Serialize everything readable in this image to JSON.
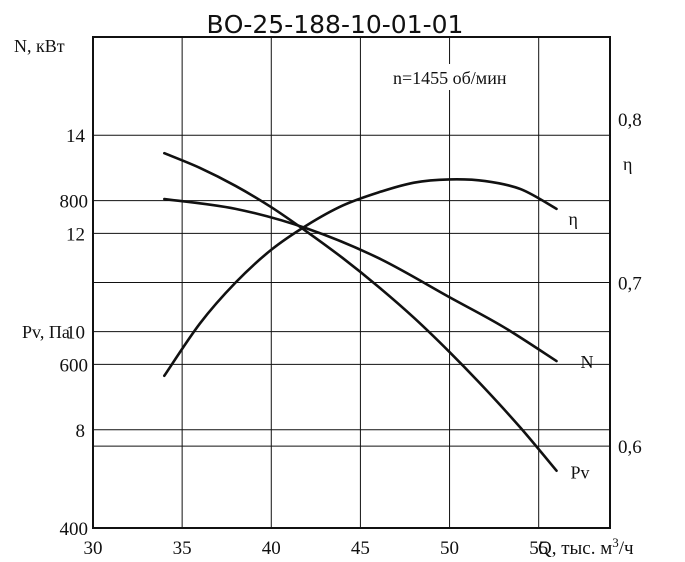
{
  "chart_data": {
    "type": "line",
    "title": "ВО-25-188-10-01-01",
    "annotation": "n=1455 об/мин",
    "xlabel": "Q, тыс. м",
    "xlabel_sup": "3",
    "xlabel_unit": "/ч",
    "xlim": [
      30,
      59
    ],
    "x_ticks": [
      "30",
      "35",
      "40",
      "45",
      "50",
      "55"
    ],
    "axes": {
      "N": {
        "label": "N, кВт",
        "ticks": [
          "8",
          "10",
          "12",
          "14"
        ],
        "range": [
          6,
          16
        ]
      },
      "Pv": {
        "label": "Pv, Па",
        "ticks": [
          "400",
          "600",
          "800"
        ],
        "range": [
          400,
          1000
        ]
      },
      "eta": {
        "label": "η",
        "ticks": [
          "0,6",
          "0,7",
          "0,8"
        ],
        "range": [
          0.55,
          0.85
        ]
      }
    },
    "series": [
      {
        "name": "N",
        "axis": "N",
        "x": [
          34,
          38,
          42,
          46,
          50,
          53,
          56
        ],
        "y": [
          12.7,
          12.5,
          12.1,
          11.5,
          10.7,
          10.1,
          9.4
        ]
      },
      {
        "name": "η",
        "axis": "eta",
        "x": [
          34,
          36,
          38,
          40,
          42,
          44,
          46,
          48,
          50,
          52,
          54,
          56
        ],
        "y": [
          0.643,
          0.675,
          0.7,
          0.72,
          0.735,
          0.747,
          0.755,
          0.761,
          0.763,
          0.762,
          0.757,
          0.745
        ]
      },
      {
        "name": "Pv",
        "axis": "Pv",
        "x": [
          34,
          36,
          38,
          40,
          42,
          44,
          46,
          48,
          50,
          52,
          54,
          56
        ],
        "y": [
          858,
          840,
          818,
          792,
          762,
          730,
          695,
          657,
          615,
          570,
          522,
          470
        ]
      }
    ]
  }
}
